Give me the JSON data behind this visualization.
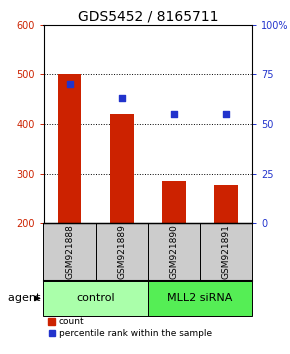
{
  "title": "GDS5452 / 8165711",
  "samples": [
    "GSM921888",
    "GSM921889",
    "GSM921890",
    "GSM921891"
  ],
  "counts": [
    500,
    420,
    285,
    278
  ],
  "percentiles": [
    70,
    63,
    55,
    55
  ],
  "bar_bottom": 200,
  "ylim_left": [
    200,
    600
  ],
  "ylim_right": [
    0,
    100
  ],
  "yticks_left": [
    200,
    300,
    400,
    500,
    600
  ],
  "yticks_right": [
    0,
    25,
    50,
    75,
    100
  ],
  "bar_color": "#cc2200",
  "dot_color": "#2233cc",
  "groups": [
    {
      "label": "control",
      "indices": [
        0,
        1
      ],
      "color": "#aaffaa"
    },
    {
      "label": "MLL2 siRNA",
      "indices": [
        2,
        3
      ],
      "color": "#55ee55"
    }
  ],
  "agent_label": "agent",
  "sample_box_color": "#cccccc",
  "title_fontsize": 10,
  "tick_fontsize": 7,
  "sample_fontsize": 6.5,
  "group_fontsize": 8,
  "legend_fontsize": 6.5,
  "agent_fontsize": 8
}
